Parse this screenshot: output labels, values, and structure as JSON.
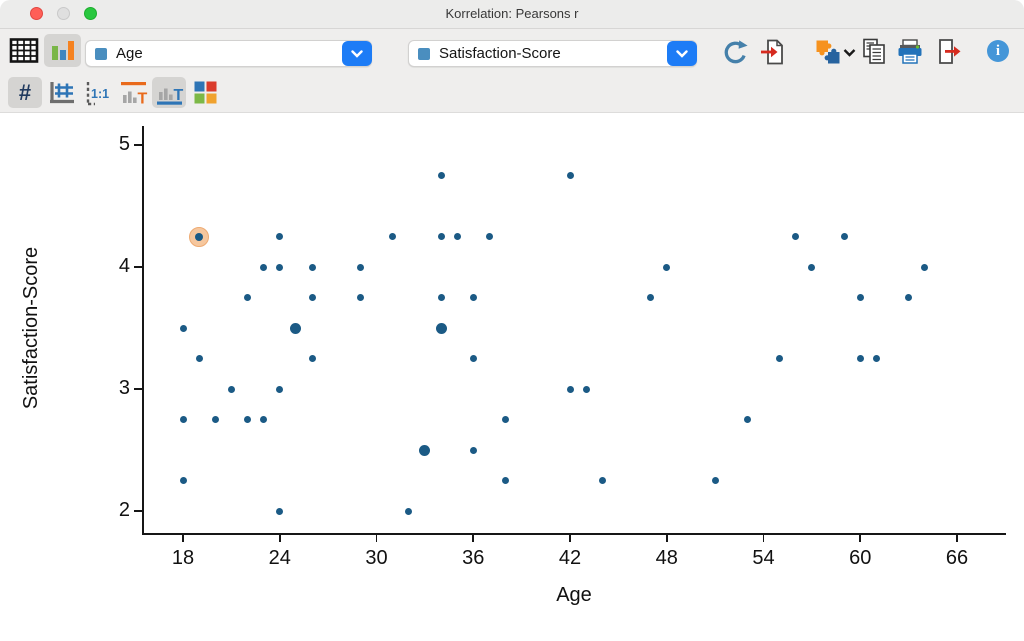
{
  "window": {
    "title": "Korrelation: Pearsons r"
  },
  "toolbar": {
    "view_buttons": [
      {
        "name": "table-view",
        "icon": "table-grid-icon",
        "selected": false
      },
      {
        "name": "chart-view",
        "icon": "bar-chart-icon",
        "selected": true
      }
    ],
    "x_variable": {
      "value": "Age"
    },
    "y_variable": {
      "value": "Satisfaction-Score"
    },
    "action_icons": [
      "refresh-icon",
      "import-document-icon",
      "modules-puzzle-icon",
      "copy-icon",
      "print-icon",
      "export-document-icon",
      "info-icon"
    ],
    "info_glyph": "i"
  },
  "subtoolbar": [
    {
      "name": "numeric-values",
      "glyph": "#",
      "selected": true
    },
    {
      "name": "gridlines",
      "glyph": "",
      "selected": false
    },
    {
      "name": "aspect-ratio-1-1",
      "glyph": "1:1",
      "selected": false
    },
    {
      "name": "axis-title-top",
      "glyph": "T",
      "selected": false
    },
    {
      "name": "axis-title-bottom",
      "glyph": "T",
      "selected": true
    },
    {
      "name": "color-scheme",
      "glyph": "",
      "selected": false
    }
  ],
  "colors": {
    "accent_blue": "#1d7cf6",
    "point_blue": "#1b5a85",
    "highlight_orange": "#f6c79e",
    "selected_button_bg": "#d5d4d2"
  },
  "chart_data": {
    "type": "scatter",
    "title": "",
    "xlabel": "Age",
    "ylabel": "Satisfaction-Score",
    "x_ticks": [
      18,
      24,
      30,
      36,
      42,
      48,
      54,
      60,
      66
    ],
    "y_ticks": [
      5,
      4,
      3,
      2
    ],
    "xlim": [
      15.5,
      69
    ],
    "ylim": [
      1.8,
      5.15
    ],
    "grid": false,
    "legend": false,
    "point_color": "#1b5a85",
    "highlight_color": "#f6c79e",
    "points": [
      {
        "x": 34,
        "y": 4.75
      },
      {
        "x": 42,
        "y": 4.75
      },
      {
        "x": 19,
        "y": 4.25,
        "highlighted": true
      },
      {
        "x": 24,
        "y": 4.25
      },
      {
        "x": 31,
        "y": 4.25
      },
      {
        "x": 34,
        "y": 4.25
      },
      {
        "x": 35,
        "y": 4.25
      },
      {
        "x": 37,
        "y": 4.25
      },
      {
        "x": 56,
        "y": 4.25
      },
      {
        "x": 59,
        "y": 4.25
      },
      {
        "x": 23,
        "y": 4.0
      },
      {
        "x": 24,
        "y": 4.0
      },
      {
        "x": 26,
        "y": 4.0
      },
      {
        "x": 29,
        "y": 4.0
      },
      {
        "x": 48,
        "y": 4.0
      },
      {
        "x": 57,
        "y": 4.0
      },
      {
        "x": 64,
        "y": 4.0
      },
      {
        "x": 22,
        "y": 3.75
      },
      {
        "x": 26,
        "y": 3.75
      },
      {
        "x": 29,
        "y": 3.75
      },
      {
        "x": 34,
        "y": 3.75
      },
      {
        "x": 36,
        "y": 3.75
      },
      {
        "x": 47,
        "y": 3.75
      },
      {
        "x": 60,
        "y": 3.75
      },
      {
        "x": 63,
        "y": 3.75
      },
      {
        "x": 18,
        "y": 3.5
      },
      {
        "x": 25,
        "y": 3.5,
        "size": "large"
      },
      {
        "x": 34,
        "y": 3.5,
        "size": "large"
      },
      {
        "x": 19,
        "y": 3.25
      },
      {
        "x": 26,
        "y": 3.25
      },
      {
        "x": 36,
        "y": 3.25
      },
      {
        "x": 55,
        "y": 3.25
      },
      {
        "x": 60,
        "y": 3.25
      },
      {
        "x": 61,
        "y": 3.25
      },
      {
        "x": 21,
        "y": 3.0
      },
      {
        "x": 24,
        "y": 3.0
      },
      {
        "x": 42,
        "y": 3.0
      },
      {
        "x": 43,
        "y": 3.0
      },
      {
        "x": 18,
        "y": 2.75
      },
      {
        "x": 20,
        "y": 2.75
      },
      {
        "x": 22,
        "y": 2.75
      },
      {
        "x": 23,
        "y": 2.75
      },
      {
        "x": 38,
        "y": 2.75
      },
      {
        "x": 53,
        "y": 2.75
      },
      {
        "x": 33,
        "y": 2.5,
        "size": "large"
      },
      {
        "x": 36,
        "y": 2.5
      },
      {
        "x": 18,
        "y": 2.25
      },
      {
        "x": 38,
        "y": 2.25
      },
      {
        "x": 44,
        "y": 2.25
      },
      {
        "x": 51,
        "y": 2.25
      },
      {
        "x": 24,
        "y": 2.0
      },
      {
        "x": 32,
        "y": 2.0
      }
    ]
  }
}
